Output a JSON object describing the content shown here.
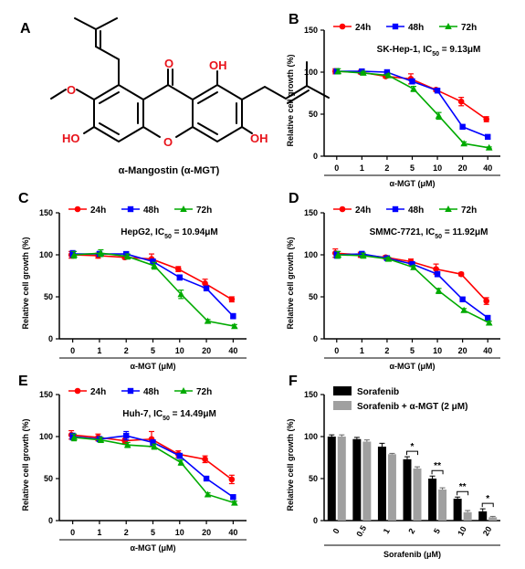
{
  "panels": {
    "A": {
      "letter": "A",
      "molecule": {
        "name": "α-Mangostin (α-MGT)",
        "atoms": {
          "carbonyl_o": "O",
          "oh_top_right": "OH",
          "ring_o": "O",
          "methoxy_o": "O",
          "ho_left": "HO",
          "oh_right": "OH"
        },
        "colors": {
          "heteroatom": "#e8131b",
          "bond": "#000000"
        }
      }
    },
    "B": {
      "letter": "B"
    },
    "C": {
      "letter": "C"
    },
    "D": {
      "letter": "D"
    },
    "E": {
      "letter": "E"
    },
    "F": {
      "letter": "F"
    }
  },
  "chart_data": [
    {
      "panel": "B",
      "type": "line",
      "annotation": "SK-Hep-1, IC50 = 9.13μM",
      "annotation_parts": {
        "prefix": "SK-Hep-1, IC",
        "sub": "50",
        "suffix": " = 9.13μM"
      },
      "xlabel": "α-MGT (μM)",
      "ylabel": "Relative cell growth (%)",
      "categories": [
        "0",
        "1",
        "2",
        "5",
        "10",
        "20",
        "40"
      ],
      "ylim": [
        0,
        150
      ],
      "yticks": [
        "0",
        "50",
        "100",
        "150"
      ],
      "legend_position": "top",
      "series": [
        {
          "name": "24h",
          "color": "#ff0000",
          "marker": "circle",
          "values": [
            101,
            100,
            95,
            92,
            79,
            65,
            44
          ],
          "errors": [
            3,
            2,
            2,
            6,
            2,
            5,
            3
          ]
        },
        {
          "name": "48h",
          "color": "#0000ff",
          "marker": "square",
          "values": [
            101,
            101,
            100,
            89,
            78,
            35,
            23
          ],
          "errors": [
            3,
            2,
            2,
            3,
            2,
            2,
            2
          ]
        },
        {
          "name": "72h",
          "color": "#00aa00",
          "marker": "triangle",
          "values": [
            101,
            99,
            96,
            80,
            48,
            15,
            10
          ],
          "errors": [
            3,
            2,
            2,
            3,
            4,
            2,
            1
          ]
        }
      ]
    },
    {
      "panel": "C",
      "type": "line",
      "annotation": "HepG2, IC50 = 10.94μM",
      "annotation_parts": {
        "prefix": "HepG2, IC",
        "sub": "50",
        "suffix": " = 10.94μM"
      },
      "xlabel": "α-MGT (μM)",
      "ylabel": "Relative cell growth (%)",
      "categories": [
        "0",
        "1",
        "2",
        "5",
        "10",
        "20",
        "40"
      ],
      "ylim": [
        0,
        150
      ],
      "yticks": [
        "0",
        "50",
        "100",
        "150"
      ],
      "legend_position": "top",
      "series": [
        {
          "name": "24h",
          "color": "#ff0000",
          "marker": "circle",
          "values": [
            100,
            99,
            97,
            95,
            83,
            66,
            47
          ],
          "errors": [
            4,
            3,
            2,
            6,
            3,
            5,
            3
          ]
        },
        {
          "name": "48h",
          "color": "#0000ff",
          "marker": "square",
          "values": [
            101,
            101,
            101,
            92,
            73,
            60,
            27
          ],
          "errors": [
            4,
            3,
            2,
            3,
            3,
            2,
            3
          ]
        },
        {
          "name": "72h",
          "color": "#00aa00",
          "marker": "triangle",
          "values": [
            100,
            102,
            98,
            87,
            53,
            21,
            15
          ],
          "errors": [
            4,
            4,
            3,
            4,
            5,
            2,
            2
          ]
        }
      ]
    },
    {
      "panel": "D",
      "type": "line",
      "annotation": "SMMC-7721, IC50 = 11.92μM",
      "annotation_parts": {
        "prefix": "SMMC-7721, IC",
        "sub": "50",
        "suffix": " = 11.92μM"
      },
      "xlabel": "α-MGT (μM)",
      "ylabel": "Relative cell growth (%)",
      "categories": [
        "0",
        "1",
        "2",
        "5",
        "10",
        "20",
        "40"
      ],
      "ylim": [
        0,
        150
      ],
      "yticks": [
        "0",
        "50",
        "100",
        "150"
      ],
      "legend_position": "top",
      "series": [
        {
          "name": "24h",
          "color": "#ff0000",
          "marker": "circle",
          "values": [
            102,
            100,
            97,
            92,
            83,
            77,
            45
          ],
          "errors": [
            5,
            3,
            2,
            3,
            6,
            2,
            4
          ]
        },
        {
          "name": "48h",
          "color": "#0000ff",
          "marker": "square",
          "values": [
            100,
            101,
            96,
            89,
            77,
            47,
            25
          ],
          "errors": [
            4,
            3,
            2,
            2,
            3,
            2,
            2
          ]
        },
        {
          "name": "72h",
          "color": "#00aa00",
          "marker": "triangle",
          "values": [
            100,
            99,
            95,
            85,
            57,
            34,
            19
          ],
          "errors": [
            4,
            3,
            2,
            2,
            3,
            2,
            2
          ]
        }
      ]
    },
    {
      "panel": "E",
      "type": "line",
      "annotation": "Huh-7, IC50 = 14.49μM",
      "annotation_parts": {
        "prefix": "Huh-7, IC",
        "sub": "50",
        "suffix": " = 14.49μM"
      },
      "xlabel": "α-MGT (μM)",
      "ylabel": "Relative cell growth (%)",
      "categories": [
        "0",
        "1",
        "2",
        "5",
        "10",
        "20",
        "40"
      ],
      "ylim": [
        0,
        150
      ],
      "yticks": [
        "0",
        "50",
        "100",
        "150"
      ],
      "legend_position": "top",
      "series": [
        {
          "name": "24h",
          "color": "#ff0000",
          "marker": "circle",
          "values": [
            102,
            99,
            95,
            97,
            79,
            73,
            49
          ],
          "errors": [
            5,
            4,
            3,
            9,
            4,
            4,
            5
          ]
        },
        {
          "name": "48h",
          "color": "#0000ff",
          "marker": "square",
          "values": [
            100,
            97,
            101,
            93,
            77,
            50,
            28
          ],
          "errors": [
            4,
            3,
            5,
            3,
            3,
            2,
            2
          ]
        },
        {
          "name": "72h",
          "color": "#00aa00",
          "marker": "triangle",
          "values": [
            99,
            96,
            90,
            88,
            69,
            31,
            21
          ],
          "errors": [
            4,
            3,
            3,
            3,
            3,
            2,
            2
          ]
        }
      ]
    },
    {
      "panel": "F",
      "type": "bar",
      "xlabel": "Sorafenib (μM)",
      "ylabel": "Relative cell growth (%)",
      "categories": [
        "0",
        "0.5",
        "1",
        "2",
        "5",
        "10",
        "20"
      ],
      "ylim": [
        0,
        150
      ],
      "yticks": [
        "0",
        "50",
        "100",
        "150"
      ],
      "legend_position": "top-left",
      "series": [
        {
          "name": "Sorafenib",
          "color": "#000000",
          "values": [
            100,
            97,
            88,
            73,
            50,
            26,
            11
          ],
          "errors": [
            2,
            2,
            4,
            3,
            3,
            2,
            3
          ]
        },
        {
          "name": "Sorafenib + α-MGT (2 μM)",
          "color": "#a0a0a0",
          "values": [
            100,
            94,
            79,
            62,
            37,
            10,
            4
          ],
          "errors": [
            2,
            2,
            1,
            2,
            2,
            2,
            1
          ]
        }
      ],
      "significance": [
        {
          "category": "2",
          "label": "*"
        },
        {
          "category": "5",
          "label": "**"
        },
        {
          "category": "10",
          "label": "**"
        },
        {
          "category": "20",
          "label": "*"
        }
      ]
    }
  ]
}
